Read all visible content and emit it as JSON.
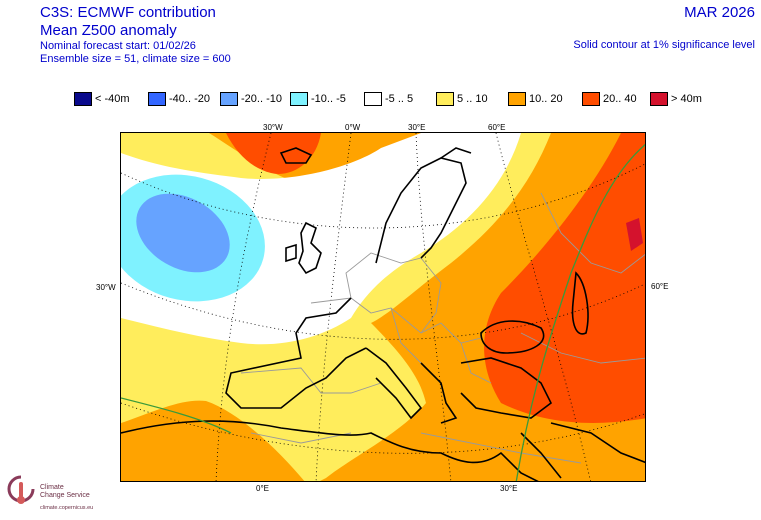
{
  "header": {
    "title_line1": "C3S: ECMWF contribution",
    "title_line2": "Mean Z500 anomaly",
    "forecast_start": "Nominal forecast start: 01/02/26",
    "ensemble": "Ensemble size = 51, climate size = 600",
    "month": "MAR 2026",
    "significance": "Solid contour at 1% significance level"
  },
  "legend": [
    {
      "label": "< -40m",
      "color": "#0a0a8c"
    },
    {
      "label": "-40.. -20",
      "color": "#3366ff"
    },
    {
      "label": "-20.. -10",
      "color": "#66a3ff"
    },
    {
      "label": "-10.. -5",
      "color": "#7ff2ff"
    },
    {
      "label": "-5 .. 5",
      "color": "#ffffff"
    },
    {
      "label": "5 .. 10",
      "color": "#ffed5c"
    },
    {
      "label": "10.. 20",
      "color": "#ffa300"
    },
    {
      "label": "20.. 40",
      "color": "#ff4d00"
    },
    {
      "label": "> 40m",
      "color": "#d4122d"
    }
  ],
  "map": {
    "top_lon_labels": [
      "30°W",
      "0°W",
      "30°E",
      "60°E"
    ],
    "bottom_lon_labels": [
      "0°E",
      "30°E"
    ],
    "left_lat_label": "30°W",
    "right_lat_label": "60°E"
  },
  "logo": {
    "line1": "Climate",
    "line2": "Change Service",
    "url": "climate.copernicus.eu"
  }
}
